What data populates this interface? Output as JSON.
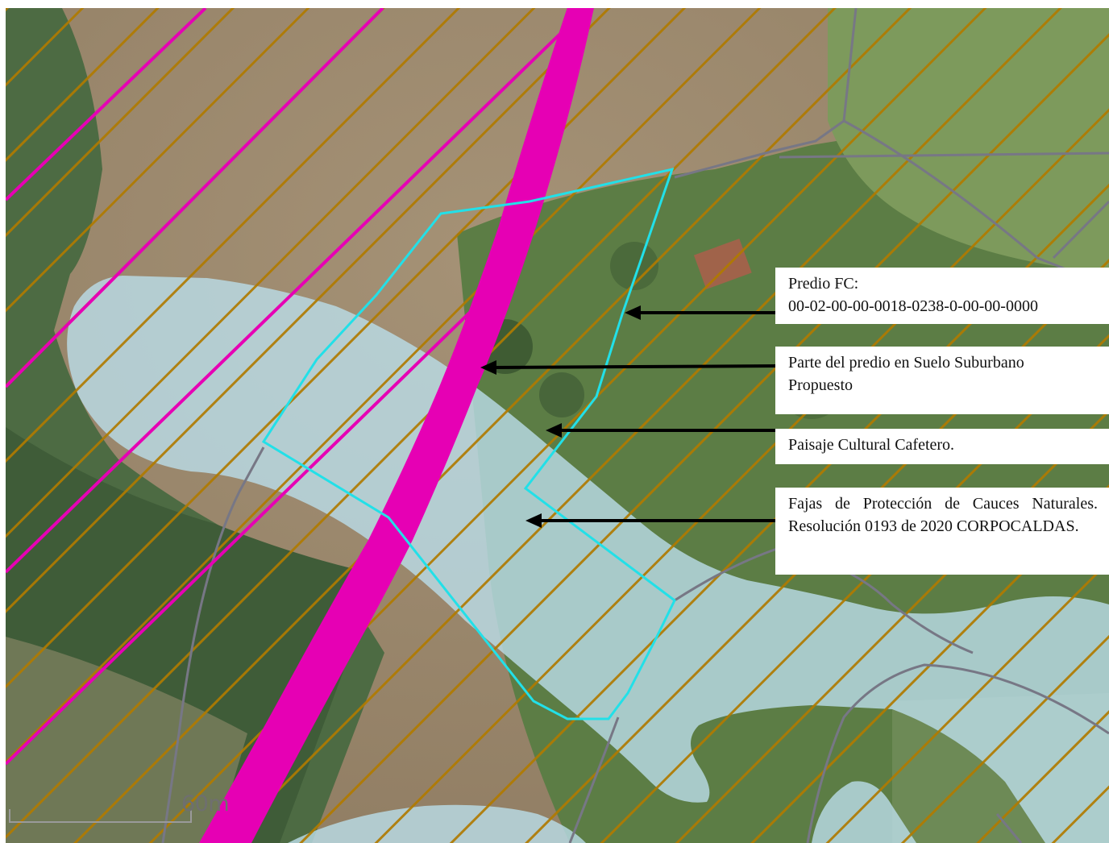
{
  "map": {
    "scale_bar": {
      "label": "60m"
    },
    "colors": {
      "road": "#e600b4",
      "parcel_outline": "#22e0e8",
      "coffee_landscape_hatch": "#b07a00",
      "stream_buffer": "#b9dce6",
      "boundary_lines": "#777785"
    },
    "icons": [
      "arrow-left-icon"
    ]
  },
  "annotations": [
    {
      "id": "predio",
      "lines": [
        "Predio FC:",
        "00-02-00-00-0018-0238-0-00-00-0000"
      ]
    },
    {
      "id": "suburbano",
      "lines": [
        "Parte del predio en Suelo Suburbano",
        "Propuesto"
      ]
    },
    {
      "id": "paisaje",
      "lines": [
        "Paisaje Cultural Cafetero."
      ]
    },
    {
      "id": "fajas",
      "text": "Fajas de Protección de Cauces Naturales. Resolución 0193 de 2020 CORPOCALDAS."
    }
  ]
}
